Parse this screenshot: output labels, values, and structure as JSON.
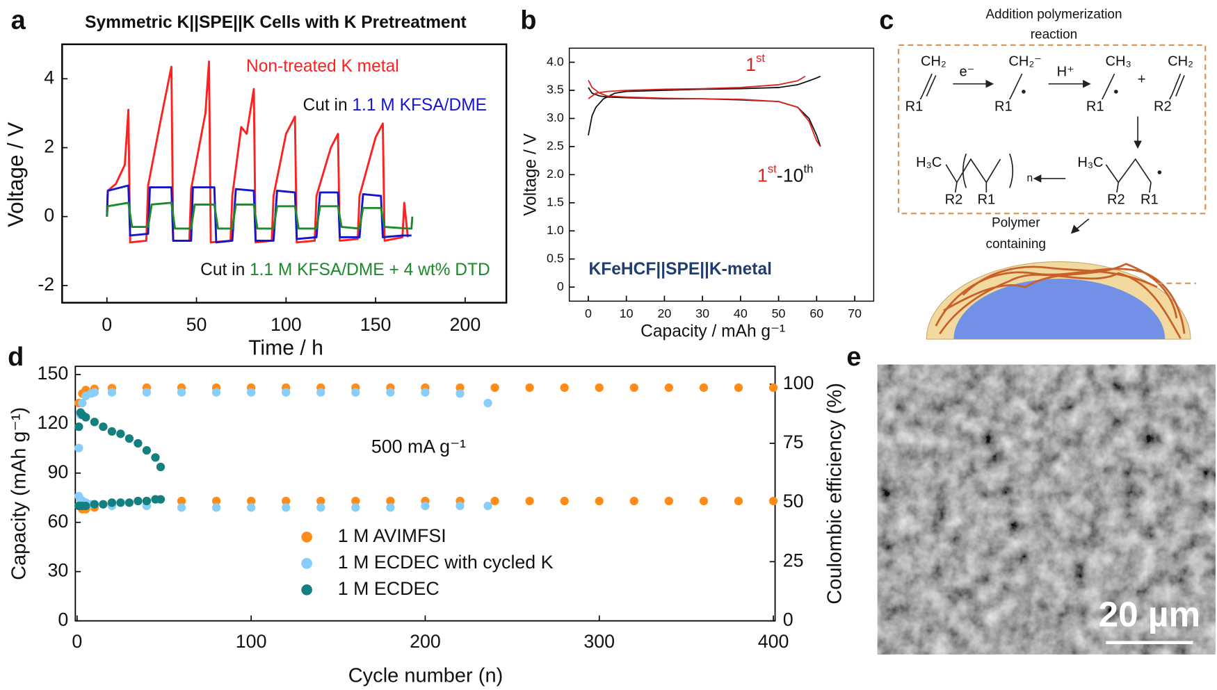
{
  "panel_labels": [
    "a",
    "b",
    "c",
    "d",
    "e"
  ],
  "chart_data": [
    {
      "type": "line",
      "title": "Symmetric K||SPE||K Cells with K Pretreatment",
      "xlabel": "Time / h",
      "ylabel": "Voltage / V",
      "xlim": [
        -25,
        223
      ],
      "ylim": [
        -2.5,
        5
      ],
      "xticks": [
        0,
        50,
        100,
        150,
        200
      ],
      "yticks": [
        -2,
        0,
        2,
        4
      ],
      "annotations": [
        "Cut in",
        "Cut in"
      ],
      "series": [
        {
          "name": "Non-treated K metal",
          "color": "#ff2020",
          "x": [
            0,
            0.5,
            5,
            10,
            12,
            12.5,
            13,
            22,
            23,
            30,
            36,
            37,
            46,
            47,
            55,
            57,
            58,
            69,
            70,
            75,
            78,
            82,
            83,
            92,
            93,
            100,
            105,
            106,
            116,
            117,
            125,
            129,
            130,
            140,
            141,
            150,
            154,
            155,
            165,
            166,
            168
          ],
          "values": [
            0,
            0.75,
            0.95,
            1.5,
            3.1,
            1.0,
            -0.75,
            -0.7,
            0.9,
            2.8,
            4.35,
            -0.7,
            -0.7,
            0.8,
            3.0,
            4.5,
            -0.75,
            -0.7,
            0.6,
            2.6,
            2.4,
            3.7,
            -0.75,
            -0.7,
            0.6,
            2.4,
            2.9,
            -0.75,
            -0.7,
            0.6,
            2.0,
            2.4,
            -0.7,
            -0.65,
            0.6,
            2.3,
            2.7,
            -0.7,
            -0.6,
            0.4,
            -0.6
          ]
        },
        {
          "name": "1.1 M KFSA/DME",
          "color": "#1515d0",
          "x": [
            0,
            0.5,
            12,
            13,
            23,
            24,
            36,
            37,
            47,
            48,
            60,
            61,
            70,
            72,
            82,
            83,
            93,
            95,
            105,
            106,
            117,
            119,
            129,
            130,
            141,
            143,
            153,
            154,
            165,
            170
          ],
          "values": [
            0,
            0.75,
            0.9,
            -0.55,
            -0.5,
            0.85,
            0.85,
            -0.7,
            -0.7,
            0.85,
            0.85,
            -0.75,
            -0.7,
            0.8,
            0.75,
            -0.7,
            -0.7,
            0.75,
            0.7,
            -0.65,
            -0.6,
            0.7,
            0.7,
            -0.6,
            -0.6,
            0.65,
            0.6,
            -0.6,
            -0.55,
            -0.55
          ]
        },
        {
          "name": "1.1 M KFSA/DME + 4 wt% DTD",
          "color": "#1a8a2a",
          "x": [
            0,
            0.5,
            12,
            14,
            23,
            25,
            36,
            38,
            47,
            49,
            60,
            62,
            70,
            72,
            82,
            84,
            93,
            95,
            105,
            107,
            117,
            119,
            129,
            131,
            141,
            143,
            153,
            155,
            168,
            170,
            170.5
          ],
          "values": [
            0,
            0.3,
            0.4,
            -0.3,
            -0.3,
            0.35,
            0.4,
            -0.35,
            -0.35,
            0.35,
            0.35,
            -0.35,
            -0.35,
            0.35,
            0.35,
            -0.35,
            -0.35,
            0.3,
            0.3,
            -0.35,
            -0.35,
            0.3,
            0.3,
            -0.3,
            -0.35,
            0.25,
            0.25,
            -0.3,
            -0.35,
            -0.35,
            0
          ]
        }
      ]
    },
    {
      "type": "line",
      "xlabel": "Capacity / mAh g⁻¹",
      "ylabel": "Voltage / V",
      "xlim": [
        -5,
        75
      ],
      "ylim": [
        -0.25,
        4.25
      ],
      "xticks": [
        0,
        10,
        20,
        30,
        40,
        50,
        60,
        70
      ],
      "yticks": [
        0,
        0.5,
        {
          "value": 1,
          "label": "1.0"
        },
        1.5,
        {
          "value": 2,
          "label": "2.0"
        },
        2.5,
        {
          "value": 3,
          "label": "3.0"
        },
        3.5,
        {
          "value": 4,
          "label": "4.0"
        }
      ],
      "annotations": [
        "KFeHCF||SPE||K-metal",
        "1",
        "st",
        "1",
        "st",
        "-10",
        "th"
      ],
      "series": [
        {
          "color": "#111111",
          "x": [
            0,
            1,
            2,
            4,
            7,
            10,
            20,
            30,
            40,
            50,
            55,
            58,
            60,
            61
          ],
          "values": [
            2.7,
            3.05,
            3.2,
            3.35,
            3.45,
            3.48,
            3.5,
            3.52,
            3.53,
            3.55,
            3.6,
            3.67,
            3.72,
            3.75
          ]
        },
        {
          "color": "#111111",
          "x": [
            0,
            1,
            3,
            5,
            10,
            20,
            30,
            40,
            50,
            55,
            58,
            60,
            61
          ],
          "values": [
            3.55,
            3.45,
            3.4,
            3.38,
            3.37,
            3.35,
            3.35,
            3.33,
            3.3,
            3.2,
            3.0,
            2.7,
            2.5
          ]
        },
        {
          "color": "#e02020",
          "x": [
            0,
            2,
            5,
            10,
            20,
            30,
            40,
            50,
            55,
            57
          ],
          "values": [
            3.35,
            3.45,
            3.48,
            3.5,
            3.52,
            3.53,
            3.55,
            3.6,
            3.67,
            3.75
          ]
        },
        {
          "color": "#e02020",
          "x": [
            0,
            1,
            3,
            5,
            10,
            20,
            30,
            40,
            50,
            55,
            58,
            60,
            61
          ],
          "values": [
            3.68,
            3.55,
            3.45,
            3.4,
            3.38,
            3.36,
            3.35,
            3.34,
            3.3,
            3.2,
            2.95,
            2.6,
            2.5
          ]
        }
      ]
    },
    {
      "type": "scatter",
      "xlabel": "Cycle number (n)",
      "ylabel": "Capacity (mAh g⁻¹)",
      "y2label": "Coulombic efficiency (%)",
      "xlim": [
        -1,
        401
      ],
      "ylim": [
        0,
        155
      ],
      "y2lim": [
        0,
        107.5
      ],
      "xticks": [
        0,
        100,
        200,
        300,
        400
      ],
      "yticks": [
        0,
        30,
        60,
        90,
        120,
        150
      ],
      "y2ticks": [
        0,
        25,
        50,
        75,
        100
      ],
      "annotations": [
        "500 mA g⁻¹"
      ],
      "legend": "lower center",
      "series": [
        {
          "name": "1 M AVIMFSI",
          "color": "#ff8c1a",
          "x": [
            1,
            3,
            5,
            10,
            20,
            40,
            60,
            80,
            100,
            120,
            140,
            160,
            180,
            200,
            220,
            240,
            260,
            280,
            300,
            320,
            340,
            360,
            380,
            400
          ],
          "values": [
            70,
            68,
            68,
            69,
            71,
            73,
            73,
            73,
            73,
            73,
            73,
            73,
            73,
            73,
            73,
            73,
            73,
            73,
            73,
            73,
            73,
            73,
            73,
            73
          ]
        },
        {
          "name": "1 M ECDEC with cycled K",
          "color": "#87cefa",
          "x": [
            1,
            2,
            3,
            5,
            8,
            10,
            20,
            40,
            60,
            80,
            100,
            120,
            140,
            160,
            180,
            200,
            220,
            236
          ],
          "values": [
            76,
            74,
            73,
            72,
            71,
            71,
            70,
            70,
            69,
            69,
            69,
            69,
            69,
            69,
            69,
            70,
            70,
            70
          ]
        },
        {
          "name": "1 M ECDEC",
          "color": "#138080",
          "x": [
            1,
            2,
            3,
            5,
            10,
            15,
            20,
            25,
            30,
            35,
            40,
            45,
            48
          ],
          "values": [
            70,
            70,
            70,
            70,
            71,
            71,
            72,
            72,
            72,
            73,
            73,
            74,
            74
          ]
        },
        {
          "color": "#ff8c1a",
          "axis": "y2",
          "x": [
            1,
            3,
            5,
            10,
            20,
            40,
            60,
            80,
            100,
            120,
            140,
            160,
            180,
            200,
            220,
            240,
            260,
            280,
            300,
            320,
            340,
            360,
            380,
            400
          ],
          "values": [
            92,
            96,
            97.5,
            98,
            98.3,
            98.5,
            98.5,
            98.5,
            98.5,
            98.5,
            98.5,
            98.5,
            98.5,
            98.5,
            98.5,
            98.5,
            98.5,
            98.5,
            98.5,
            98.5,
            98.5,
            98.5,
            98.5,
            98.5
          ]
        },
        {
          "color": "#87cefa",
          "axis": "y2",
          "x": [
            1,
            2,
            3,
            5,
            8,
            10,
            20,
            40,
            60,
            80,
            100,
            120,
            140,
            160,
            180,
            200,
            220,
            236
          ],
          "values": [
            73,
            87,
            92,
            95,
            96,
            96.5,
            96.5,
            96.5,
            96.5,
            96.5,
            96.5,
            96.5,
            96.5,
            96.5,
            96.5,
            96.5,
            96,
            92
          ]
        },
        {
          "color": "#138080",
          "axis": "y2",
          "x": [
            1,
            2,
            3,
            5,
            10,
            15,
            20,
            25,
            30,
            35,
            40,
            45,
            48
          ],
          "values": [
            82,
            88,
            87,
            86,
            84,
            82,
            80,
            79,
            77,
            75,
            72,
            69,
            65
          ]
        }
      ]
    }
  ],
  "diagram": {
    "title": [
      "Addition polymerization",
      "reaction"
    ],
    "labels": [
      "CH₂",
      "R1",
      "e⁻",
      "CH₂⁻",
      "R1",
      "H⁺",
      "CH₃",
      "R1",
      "+",
      "CH₂",
      "R2",
      "H₃C",
      "R2",
      "R1",
      "n",
      "H₃C",
      "R2",
      "R1"
    ],
    "caption": [
      "Polymer",
      "containing"
    ]
  },
  "micrograph": {
    "scale_bar": "20 µm"
  }
}
